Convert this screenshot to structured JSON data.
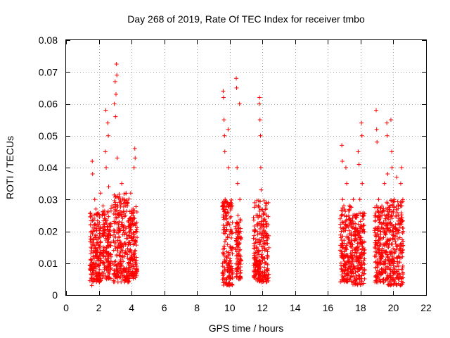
{
  "chart_data": {
    "type": "scatter",
    "title": "Day 268 of 2019, Rate Of TEC Index for receiver tmbo",
    "xlabel": "GPS time / hours",
    "ylabel": "ROTI / TECUs",
    "xlim": [
      0,
      22
    ],
    "ylim": [
      0,
      0.08
    ],
    "grid": true,
    "marker": "+",
    "marker_color": "#ff0000",
    "x_ticks": [
      "0",
      "2",
      "4",
      "6",
      "8",
      "10",
      "12",
      "14",
      "16",
      "18",
      "20",
      "22"
    ],
    "y_ticks": [
      "0",
      "0.01",
      "0.02",
      "0.03",
      "0.04",
      "0.05",
      "0.06",
      "0.07",
      "0.08"
    ],
    "series": [
      {
        "name": "ROTI",
        "points": [
          [
            1.5,
            0.008
          ],
          [
            1.52,
            0.015
          ],
          [
            1.55,
            0.025
          ],
          [
            1.57,
            0.003
          ],
          [
            1.6,
            0.042
          ],
          [
            1.62,
            0.038
          ],
          [
            1.65,
            0.012
          ],
          [
            1.67,
            0.02
          ],
          [
            1.7,
            0.01
          ],
          [
            1.72,
            0.005
          ],
          [
            1.75,
            0.03
          ],
          [
            1.78,
            0.018
          ],
          [
            1.8,
            0.009
          ],
          [
            1.82,
            0.027
          ],
          [
            1.85,
            0.014
          ],
          [
            1.88,
            0.006
          ],
          [
            1.9,
            0.022
          ],
          [
            1.95,
            0.016
          ],
          [
            2.0,
            0.011
          ],
          [
            2.05,
            0.008
          ],
          [
            2.1,
            0.032
          ],
          [
            2.15,
            0.013
          ],
          [
            2.2,
            0.007
          ],
          [
            2.25,
            0.021
          ],
          [
            2.3,
            0.01
          ],
          [
            2.35,
            0.025
          ],
          [
            2.4,
            0.045
          ],
          [
            2.42,
            0.058
          ],
          [
            2.45,
            0.04
          ],
          [
            2.48,
            0.005
          ],
          [
            2.5,
            0.015
          ],
          [
            2.55,
            0.054
          ],
          [
            2.58,
            0.05
          ],
          [
            2.6,
            0.034
          ],
          [
            2.65,
            0.02
          ],
          [
            2.7,
            0.008
          ],
          [
            2.75,
            0.012
          ],
          [
            2.8,
            0.028
          ],
          [
            2.85,
            0.01
          ],
          [
            2.9,
            0.017
          ],
          [
            2.95,
            0.06
          ],
          [
            3.0,
            0.067
          ],
          [
            3.02,
            0.056
          ],
          [
            3.05,
            0.063
          ],
          [
            3.08,
            0.0725
          ],
          [
            3.1,
            0.069
          ],
          [
            3.12,
            0.043
          ],
          [
            3.15,
            0.031
          ],
          [
            3.18,
            0.007
          ],
          [
            3.2,
            0.022
          ],
          [
            3.25,
            0.015
          ],
          [
            3.3,
            0.01
          ],
          [
            3.35,
            0.026
          ],
          [
            3.4,
            0.035
          ],
          [
            3.45,
            0.019
          ],
          [
            3.5,
            0.008
          ],
          [
            3.55,
            0.03
          ],
          [
            3.6,
            0.013
          ],
          [
            3.65,
            0.021
          ],
          [
            3.7,
            0.006
          ],
          [
            3.75,
            0.028
          ],
          [
            3.8,
            0.016
          ],
          [
            3.85,
            0.01
          ],
          [
            3.9,
            0.024
          ],
          [
            3.95,
            0.032
          ],
          [
            4.0,
            0.012
          ],
          [
            4.05,
            0.007
          ],
          [
            4.1,
            0.018
          ],
          [
            4.15,
            0.04
          ],
          [
            4.2,
            0.046
          ],
          [
            4.22,
            0.043
          ],
          [
            4.25,
            0.02
          ],
          [
            4.3,
            0.01
          ],
          [
            9.6,
            0.064
          ],
          [
            9.62,
            0.062
          ],
          [
            9.65,
            0.055
          ],
          [
            9.68,
            0.05
          ],
          [
            9.7,
            0.045
          ],
          [
            9.72,
            0.03
          ],
          [
            9.75,
            0.02
          ],
          [
            9.78,
            0.005
          ],
          [
            9.8,
            0.012
          ],
          [
            9.82,
            0.025
          ],
          [
            9.85,
            0.008
          ],
          [
            9.88,
            0.018
          ],
          [
            9.9,
            0.052
          ],
          [
            9.92,
            0.04
          ],
          [
            9.95,
            0.01
          ],
          [
            9.98,
            0.003
          ],
          [
            10.0,
            0.022
          ],
          [
            10.05,
            0.015
          ],
          [
            10.1,
            0.009
          ],
          [
            10.15,
            0.028
          ],
          [
            10.4,
            0.068
          ],
          [
            10.42,
            0.065
          ],
          [
            10.45,
            0.04
          ],
          [
            10.48,
            0.035
          ],
          [
            10.5,
            0.025
          ],
          [
            10.52,
            0.015
          ],
          [
            10.55,
            0.01
          ],
          [
            10.58,
            0.005
          ],
          [
            10.6,
            0.06
          ],
          [
            10.62,
            0.03
          ],
          [
            10.65,
            0.02
          ],
          [
            11.5,
            0.01
          ],
          [
            11.55,
            0.02
          ],
          [
            11.6,
            0.005
          ],
          [
            11.65,
            0.015
          ],
          [
            11.7,
            0.025
          ],
          [
            11.75,
            0.008
          ],
          [
            11.8,
            0.06
          ],
          [
            11.82,
            0.062
          ],
          [
            11.85,
            0.055
          ],
          [
            11.88,
            0.05
          ],
          [
            11.9,
            0.04
          ],
          [
            11.92,
            0.033
          ],
          [
            11.95,
            0.018
          ],
          [
            12.0,
            0.012
          ],
          [
            12.05,
            0.022
          ],
          [
            12.1,
            0.006
          ],
          [
            12.15,
            0.014
          ],
          [
            12.2,
            0.028
          ],
          [
            12.25,
            0.01
          ],
          [
            12.3,
            0.018
          ],
          [
            16.8,
            0.01
          ],
          [
            16.82,
            0.02
          ],
          [
            16.85,
            0.047
          ],
          [
            16.88,
            0.042
          ],
          [
            16.9,
            0.03
          ],
          [
            16.92,
            0.015
          ],
          [
            16.95,
            0.005
          ],
          [
            17.0,
            0.025
          ],
          [
            17.05,
            0.012
          ],
          [
            17.1,
            0.04
          ],
          [
            17.15,
            0.035
          ],
          [
            17.2,
            0.008
          ],
          [
            17.25,
            0.018
          ],
          [
            17.3,
            0.028
          ],
          [
            17.35,
            0.01
          ],
          [
            17.4,
            0.022
          ],
          [
            17.45,
            0.006
          ],
          [
            17.5,
            0.014
          ],
          [
            17.55,
            0.03
          ],
          [
            17.6,
            0.009
          ],
          [
            17.65,
            0.02
          ],
          [
            17.7,
            0.025
          ],
          [
            17.75,
            0.005
          ],
          [
            17.8,
            0.015
          ],
          [
            17.85,
            0.045
          ],
          [
            17.9,
            0.041
          ],
          [
            17.95,
            0.03
          ],
          [
            18.0,
            0.012
          ],
          [
            18.05,
            0.054
          ],
          [
            18.08,
            0.05
          ],
          [
            18.1,
            0.035
          ],
          [
            18.12,
            0.02
          ],
          [
            18.15,
            0.008
          ],
          [
            18.2,
            0.025
          ],
          [
            18.9,
            0.015
          ],
          [
            18.92,
            0.025
          ],
          [
            18.95,
            0.058
          ],
          [
            18.98,
            0.052
          ],
          [
            19.0,
            0.048
          ],
          [
            19.05,
            0.01
          ],
          [
            19.1,
            0.03
          ],
          [
            19.15,
            0.005
          ],
          [
            19.2,
            0.02
          ],
          [
            19.25,
            0.012
          ],
          [
            19.3,
            0.025
          ],
          [
            19.35,
            0.008
          ],
          [
            19.4,
            0.018
          ],
          [
            19.45,
            0.035
          ],
          [
            19.5,
            0.01
          ],
          [
            19.55,
            0.022
          ],
          [
            19.6,
            0.054
          ],
          [
            19.62,
            0.05
          ],
          [
            19.65,
            0.038
          ],
          [
            19.7,
            0.015
          ],
          [
            19.75,
            0.006
          ],
          [
            19.8,
            0.028
          ],
          [
            19.85,
            0.055
          ],
          [
            19.9,
            0.045
          ],
          [
            19.92,
            0.04
          ],
          [
            19.95,
            0.012
          ],
          [
            20.0,
            0.02
          ],
          [
            20.05,
            0.03
          ],
          [
            20.1,
            0.008
          ],
          [
            20.15,
            0.016
          ],
          [
            20.2,
            0.037
          ],
          [
            20.25,
            0.01
          ],
          [
            20.3,
            0.025
          ],
          [
            20.35,
            0.005
          ],
          [
            20.4,
            0.018
          ],
          [
            20.45,
            0.035
          ],
          [
            20.5,
            0.04
          ],
          [
            20.52,
            0.028
          ],
          [
            20.55,
            0.012
          ]
        ],
        "dense_bands": [
          {
            "x_range": [
              1.45,
              2.15
            ],
            "y_range": [
              0.004,
              0.026
            ]
          },
          {
            "x_range": [
              2.2,
              2.75
            ],
            "y_range": [
              0.005,
              0.028
            ]
          },
          {
            "x_range": [
              2.9,
              3.85
            ],
            "y_range": [
              0.004,
              0.032
            ]
          },
          {
            "x_range": [
              3.85,
              4.35
            ],
            "y_range": [
              0.005,
              0.028
            ]
          },
          {
            "x_range": [
              9.55,
              10.2
            ],
            "y_range": [
              0.003,
              0.03
            ]
          },
          {
            "x_range": [
              10.35,
              10.7
            ],
            "y_range": [
              0.005,
              0.024
            ]
          },
          {
            "x_range": [
              11.45,
              12.4
            ],
            "y_range": [
              0.004,
              0.03
            ]
          },
          {
            "x_range": [
              16.75,
              17.5
            ],
            "y_range": [
              0.004,
              0.028
            ]
          },
          {
            "x_range": [
              17.5,
              18.25
            ],
            "y_range": [
              0.003,
              0.026
            ]
          },
          {
            "x_range": [
              18.85,
              19.6
            ],
            "y_range": [
              0.004,
              0.028
            ]
          },
          {
            "x_range": [
              19.6,
              20.6
            ],
            "y_range": [
              0.003,
              0.03
            ]
          }
        ]
      }
    ]
  }
}
